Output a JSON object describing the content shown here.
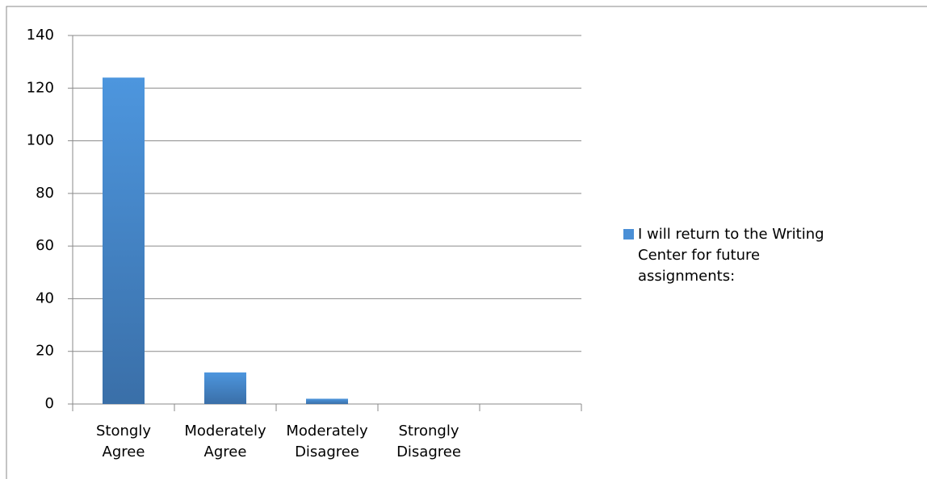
{
  "chart_data": {
    "type": "bar",
    "categories": [
      "Stongly Agree",
      "Moderately Agree",
      "Moderately Disagree",
      "Strongly Disagree",
      null
    ],
    "series": [
      {
        "name": "I will return to the Writing Center for future assignments:",
        "color": "#4a8fd6",
        "values": [
          124,
          12,
          2,
          0,
          null
        ]
      }
    ],
    "ylim": [
      0,
      140
    ],
    "yticks": [
      0,
      20,
      40,
      60,
      80,
      100,
      120,
      140
    ],
    "grid": true,
    "legend": "right"
  }
}
